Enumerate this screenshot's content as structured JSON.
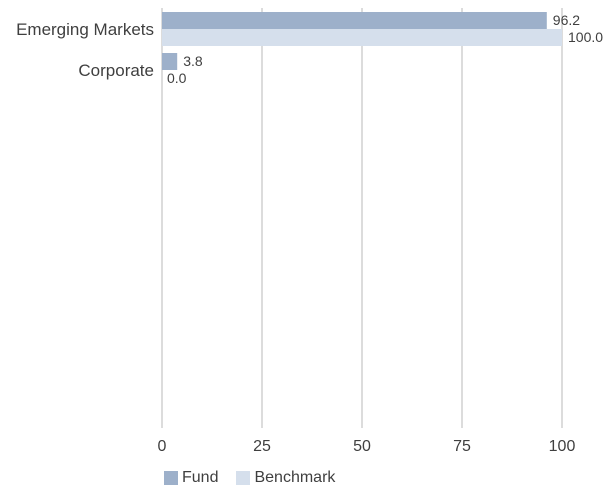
{
  "chart_data": {
    "type": "bar",
    "orientation": "horizontal",
    "categories": [
      "Emerging Markets",
      "Corporate"
    ],
    "series": [
      {
        "name": "Fund",
        "values": [
          96.2,
          3.8
        ],
        "labels": [
          "96.2",
          "3.8"
        ],
        "color": "#9db0ca"
      },
      {
        "name": "Benchmark",
        "values": [
          100.0,
          0.0
        ],
        "labels": [
          "100.0",
          "0.0"
        ],
        "color": "#d5dfec"
      }
    ],
    "xlim": [
      0,
      100
    ],
    "xticks": [
      "0",
      "25",
      "50",
      "75",
      "100"
    ],
    "grid": true,
    "legend_position": "bottom-left"
  }
}
